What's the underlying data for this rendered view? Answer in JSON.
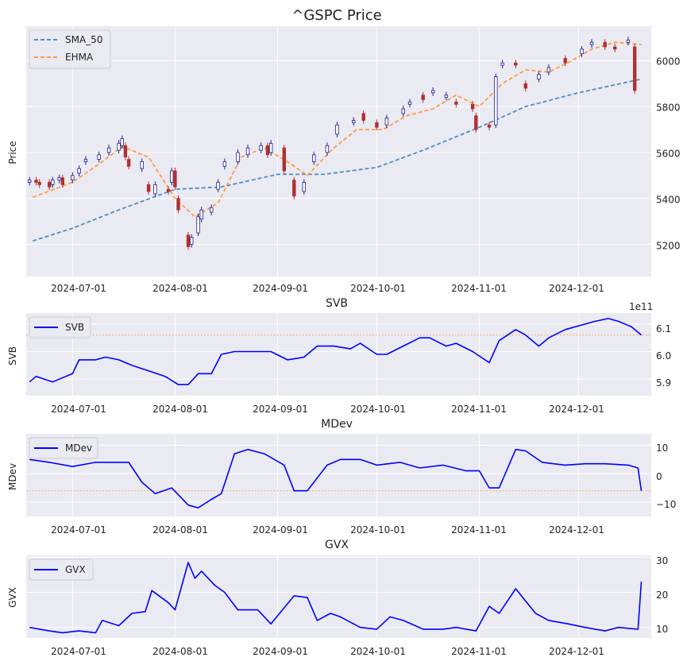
{
  "chart_data": [
    {
      "type": "line",
      "title": "^GSPC Price",
      "ylabel": "Price",
      "ylim": [
        5060,
        6150
      ],
      "yticks": [
        "5200",
        "5400",
        "5600",
        "5800",
        "6000"
      ],
      "x_ticks": [
        "2024-07-01",
        "2024-08-01",
        "2024-09-01",
        "2024-10-01",
        "2024-11-01",
        "2024-12-01"
      ],
      "x_range": [
        "2024-06-17",
        "2024-12-23"
      ],
      "colors": {
        "up": "#1f1f8f",
        "down": "#b03030",
        "sma": "#4a8fc4",
        "ehma": "#ff9a45"
      },
      "series": [
        {
          "name": "SMA_50",
          "x": [
            "2024-06-19",
            "2024-07-01",
            "2024-07-15",
            "2024-08-01",
            "2024-08-15",
            "2024-09-01",
            "2024-09-15",
            "2024-10-01",
            "2024-10-15",
            "2024-11-01",
            "2024-11-15",
            "2024-12-01",
            "2024-12-20"
          ],
          "values": [
            5215,
            5270,
            5350,
            5440,
            5450,
            5505,
            5505,
            5535,
            5610,
            5710,
            5800,
            5860,
            5920
          ]
        },
        {
          "name": "EHMA",
          "x": [
            "2024-06-19",
            "2024-07-01",
            "2024-07-10",
            "2024-07-16",
            "2024-07-24",
            "2024-08-01",
            "2024-08-07",
            "2024-08-14",
            "2024-08-21",
            "2024-08-28",
            "2024-09-04",
            "2024-09-10",
            "2024-09-18",
            "2024-09-25",
            "2024-10-03",
            "2024-10-10",
            "2024-10-18",
            "2024-10-25",
            "2024-11-01",
            "2024-11-08",
            "2024-11-15",
            "2024-11-22",
            "2024-11-29",
            "2024-12-05",
            "2024-12-12",
            "2024-12-20"
          ],
          "values": [
            5405,
            5470,
            5560,
            5625,
            5580,
            5400,
            5320,
            5380,
            5580,
            5620,
            5560,
            5500,
            5620,
            5700,
            5700,
            5760,
            5790,
            5850,
            5800,
            5900,
            5960,
            5950,
            6000,
            6050,
            6080,
            6070
          ]
        }
      ],
      "candles": {
        "x": [
          "2024-06-18",
          "2024-06-20",
          "2024-06-21",
          "2024-06-24",
          "2024-06-25",
          "2024-06-27",
          "2024-06-28",
          "2024-07-01",
          "2024-07-03",
          "2024-07-05",
          "2024-07-09",
          "2024-07-12",
          "2024-07-15",
          "2024-07-16",
          "2024-07-17",
          "2024-07-18",
          "2024-07-22",
          "2024-07-24",
          "2024-07-26",
          "2024-07-30",
          "2024-07-31",
          "2024-08-01",
          "2024-08-02",
          "2024-08-05",
          "2024-08-06",
          "2024-08-08",
          "2024-08-09",
          "2024-08-12",
          "2024-08-14",
          "2024-08-16",
          "2024-08-20",
          "2024-08-23",
          "2024-08-27",
          "2024-08-29",
          "2024-08-30",
          "2024-09-03",
          "2024-09-06",
          "2024-09-09",
          "2024-09-12",
          "2024-09-16",
          "2024-09-19",
          "2024-09-24",
          "2024-09-27",
          "2024-10-01",
          "2024-10-04",
          "2024-10-09",
          "2024-10-11",
          "2024-10-15",
          "2024-10-18",
          "2024-10-22",
          "2024-10-25",
          "2024-10-30",
          "2024-10-31",
          "2024-11-04",
          "2024-11-06",
          "2024-11-08",
          "2024-11-12",
          "2024-11-15",
          "2024-11-19",
          "2024-11-22",
          "2024-11-27",
          "2024-12-02",
          "2024-12-05",
          "2024-12-09",
          "2024-12-12",
          "2024-12-16",
          "2024-12-18"
        ],
        "open": [
          5470,
          5480,
          5470,
          5470,
          5460,
          5480,
          5490,
          5480,
          5510,
          5560,
          5570,
          5600,
          5610,
          5630,
          5630,
          5570,
          5530,
          5460,
          5420,
          5440,
          5470,
          5520,
          5400,
          5240,
          5200,
          5250,
          5310,
          5340,
          5440,
          5540,
          5560,
          5590,
          5610,
          5630,
          5600,
          5620,
          5480,
          5430,
          5560,
          5600,
          5680,
          5730,
          5770,
          5730,
          5720,
          5770,
          5810,
          5850,
          5860,
          5840,
          5820,
          5810,
          5760,
          5720,
          5720,
          5980,
          5990,
          5900,
          5920,
          5950,
          6010,
          6030,
          6070,
          6080,
          6060,
          6080,
          6060
        ],
        "close": [
          5480,
          5470,
          5460,
          5450,
          5480,
          5490,
          5460,
          5500,
          5530,
          5570,
          5590,
          5620,
          5640,
          5660,
          5580,
          5540,
          5560,
          5430,
          5460,
          5430,
          5520,
          5450,
          5350,
          5190,
          5230,
          5320,
          5350,
          5360,
          5470,
          5560,
          5600,
          5620,
          5630,
          5590,
          5640,
          5520,
          5410,
          5470,
          5590,
          5630,
          5720,
          5740,
          5740,
          5710,
          5750,
          5790,
          5820,
          5830,
          5870,
          5850,
          5810,
          5790,
          5700,
          5710,
          5930,
          5990,
          5980,
          5880,
          5940,
          5970,
          5990,
          6050,
          6080,
          6060,
          6050,
          6090,
          5870
        ]
      }
    },
    {
      "type": "line",
      "title": "SVB",
      "ylabel": "SVB",
      "ylim": [
        5.84,
        6.14
      ],
      "yticks": [
        "5.9",
        "6.0",
        "6.1"
      ],
      "offset_text": "1e11",
      "x_ticks": [
        "2024-07-01",
        "2024-08-01",
        "2024-09-01",
        "2024-10-01",
        "2024-11-01",
        "2024-12-01"
      ],
      "ref_line": 6.06,
      "series": [
        {
          "name": "SVB",
          "x": [
            "2024-06-18",
            "2024-06-20",
            "2024-06-25",
            "2024-06-27",
            "2024-07-01",
            "2024-07-03",
            "2024-07-08",
            "2024-07-11",
            "2024-07-15",
            "2024-07-19",
            "2024-07-24",
            "2024-07-29",
            "2024-08-02",
            "2024-08-05",
            "2024-08-08",
            "2024-08-12",
            "2024-08-15",
            "2024-08-19",
            "2024-08-23",
            "2024-08-28",
            "2024-08-30",
            "2024-09-04",
            "2024-09-09",
            "2024-09-13",
            "2024-09-18",
            "2024-09-23",
            "2024-09-26",
            "2024-10-01",
            "2024-10-04",
            "2024-10-09",
            "2024-10-14",
            "2024-10-17",
            "2024-10-22",
            "2024-10-25",
            "2024-10-30",
            "2024-11-04",
            "2024-11-07",
            "2024-11-12",
            "2024-11-15",
            "2024-11-19",
            "2024-11-22",
            "2024-11-27",
            "2024-12-03",
            "2024-12-06",
            "2024-12-10",
            "2024-12-13",
            "2024-12-17",
            "2024-12-20"
          ],
          "values": [
            5.89,
            5.91,
            5.89,
            5.9,
            5.92,
            5.97,
            5.97,
            5.98,
            5.97,
            5.95,
            5.93,
            5.91,
            5.88,
            5.88,
            5.92,
            5.92,
            5.99,
            6.0,
            6.0,
            6.0,
            6.0,
            5.97,
            5.98,
            6.02,
            6.02,
            6.01,
            6.03,
            5.99,
            5.99,
            6.02,
            6.05,
            6.05,
            6.02,
            6.03,
            6.0,
            5.96,
            6.04,
            6.08,
            6.06,
            6.02,
            6.05,
            6.08,
            6.1,
            6.11,
            6.12,
            6.11,
            6.09,
            6.06
          ]
        }
      ]
    },
    {
      "type": "line",
      "title": "MDev",
      "ylabel": "MDev",
      "ylim": [
        -15,
        14
      ],
      "yticks": [
        "10",
        "0",
        "−10"
      ],
      "x_ticks": [
        "2024-07-01",
        "2024-08-01",
        "2024-09-01",
        "2024-10-01",
        "2024-11-01",
        "2024-12-01"
      ],
      "ref_line": -6,
      "series": [
        {
          "name": "MDev",
          "x": [
            "2024-06-18",
            "2024-06-24",
            "2024-07-01",
            "2024-07-08",
            "2024-07-15",
            "2024-07-18",
            "2024-07-22",
            "2024-07-26",
            "2024-07-31",
            "2024-08-05",
            "2024-08-08",
            "2024-08-12",
            "2024-08-15",
            "2024-08-19",
            "2024-08-23",
            "2024-08-28",
            "2024-09-03",
            "2024-09-06",
            "2024-09-10",
            "2024-09-16",
            "2024-09-20",
            "2024-09-26",
            "2024-10-01",
            "2024-10-08",
            "2024-10-14",
            "2024-10-21",
            "2024-10-28",
            "2024-11-01",
            "2024-11-04",
            "2024-11-07",
            "2024-11-12",
            "2024-11-15",
            "2024-11-20",
            "2024-11-27",
            "2024-12-03",
            "2024-12-09",
            "2024-12-16",
            "2024-12-19",
            "2024-12-20"
          ],
          "values": [
            5,
            4,
            2.5,
            4,
            4,
            4,
            -3,
            -7,
            -5,
            -11,
            -12,
            -9,
            -7,
            7,
            8.5,
            7,
            3,
            -6,
            -6,
            3,
            5,
            5,
            3,
            4,
            2,
            3,
            1,
            1,
            -5,
            -5,
            8.5,
            8,
            4,
            3,
            3.5,
            3.5,
            3,
            2,
            -6
          ]
        }
      ]
    },
    {
      "type": "line",
      "title": "GVX",
      "ylabel": "GVX",
      "ylim": [
        7,
        30.5
      ],
      "yticks": [
        "10",
        "20",
        "30"
      ],
      "x_ticks": [
        "2024-07-01",
        "2024-08-01",
        "2024-09-01",
        "2024-10-01",
        "2024-11-01",
        "2024-12-01"
      ],
      "series": [
        {
          "name": "GVX",
          "x": [
            "2024-06-18",
            "2024-06-24",
            "2024-06-28",
            "2024-07-03",
            "2024-07-08",
            "2024-07-10",
            "2024-07-15",
            "2024-07-19",
            "2024-07-23",
            "2024-07-25",
            "2024-07-30",
            "2024-08-01",
            "2024-08-05",
            "2024-08-07",
            "2024-08-09",
            "2024-08-13",
            "2024-08-16",
            "2024-08-20",
            "2024-08-26",
            "2024-08-30",
            "2024-09-06",
            "2024-09-10",
            "2024-09-13",
            "2024-09-17",
            "2024-09-20",
            "2024-09-26",
            "2024-10-01",
            "2024-10-05",
            "2024-10-09",
            "2024-10-15",
            "2024-10-21",
            "2024-10-25",
            "2024-10-31",
            "2024-11-04",
            "2024-11-07",
            "2024-11-12",
            "2024-11-18",
            "2024-11-22",
            "2024-11-28",
            "2024-12-03",
            "2024-12-09",
            "2024-12-13",
            "2024-12-19",
            "2024-12-20"
          ],
          "values": [
            10,
            9,
            8.5,
            9,
            8.5,
            12,
            10.5,
            14,
            14.5,
            20.5,
            17,
            15,
            28.5,
            24,
            26,
            22,
            20,
            15,
            15,
            11,
            19,
            18.5,
            12,
            14,
            13,
            10,
            9.5,
            13,
            12,
            9.5,
            9.5,
            10,
            9,
            16,
            14,
            21,
            14,
            12,
            11,
            10,
            9,
            10,
            9.5,
            23
          ]
        }
      ]
    }
  ]
}
